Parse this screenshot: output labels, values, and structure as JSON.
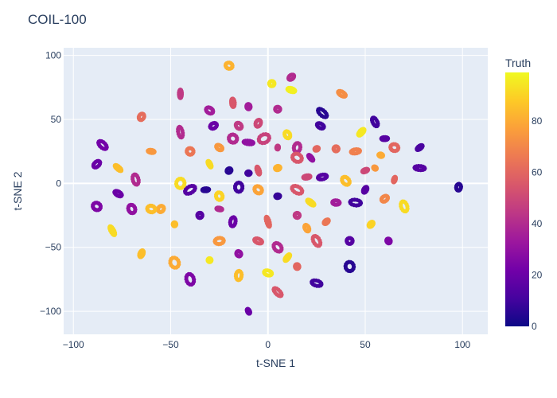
{
  "chart_data": {
    "type": "scatter",
    "title": "COIL-100",
    "xlabel": "t-SNE 1",
    "ylabel": "t-SNE 2",
    "xlim": [
      -105,
      113
    ],
    "ylim": [
      -118,
      106
    ],
    "xticks": [
      -100,
      -50,
      0,
      50,
      100
    ],
    "yticks": [
      -100,
      -50,
      0,
      50,
      100
    ],
    "xtick_labels": [
      "−100",
      "−50",
      "0",
      "50",
      "100"
    ],
    "ytick_labels": [
      "−100",
      "−50",
      "0",
      "50",
      "100"
    ],
    "grid": true,
    "plot_background": "#e5ecf6",
    "colorbar": {
      "title": "Truth",
      "range": [
        0,
        99
      ],
      "ticks": [
        0,
        20,
        40,
        60,
        80
      ],
      "colorscale": [
        "#0d0887",
        "#46039f",
        "#7201a8",
        "#9c179e",
        "#bd3786",
        "#d8576b",
        "#ed7953",
        "#fb9f3a",
        "#fdca26",
        "#f0f921"
      ]
    },
    "clusters": [
      {
        "x": -20,
        "y": 92,
        "label": 82
      },
      {
        "x": 2,
        "y": 78,
        "label": 95
      },
      {
        "x": 12,
        "y": 73,
        "label": 97
      },
      {
        "x": 12,
        "y": 83,
        "label": 40
      },
      {
        "x": -45,
        "y": 70,
        "label": 45
      },
      {
        "x": -65,
        "y": 52,
        "label": 62
      },
      {
        "x": -30,
        "y": 57,
        "label": 35
      },
      {
        "x": -18,
        "y": 63,
        "label": 55
      },
      {
        "x": -10,
        "y": 60,
        "label": 35
      },
      {
        "x": 5,
        "y": 58,
        "label": 40
      },
      {
        "x": 38,
        "y": 70,
        "label": 72
      },
      {
        "x": 28,
        "y": 55,
        "label": 5
      },
      {
        "x": 27,
        "y": 45,
        "label": 10
      },
      {
        "x": 55,
        "y": 48,
        "label": 10
      },
      {
        "x": 48,
        "y": 40,
        "label": 95
      },
      {
        "x": -85,
        "y": 30,
        "label": 22
      },
      {
        "x": -88,
        "y": 15,
        "label": 20
      },
      {
        "x": -77,
        "y": 12,
        "label": 85
      },
      {
        "x": -60,
        "y": 25,
        "label": 75
      },
      {
        "x": -40,
        "y": 25,
        "label": 65
      },
      {
        "x": -45,
        "y": 40,
        "label": 40
      },
      {
        "x": -28,
        "y": 45,
        "label": 20
      },
      {
        "x": -15,
        "y": 45,
        "label": 45
      },
      {
        "x": -5,
        "y": 47,
        "label": 50
      },
      {
        "x": 10,
        "y": 38,
        "label": 92
      },
      {
        "x": -2,
        "y": 35,
        "label": 48
      },
      {
        "x": 15,
        "y": 28,
        "label": 40
      },
      {
        "x": 25,
        "y": 27,
        "label": 60
      },
      {
        "x": 35,
        "y": 27,
        "label": 62
      },
      {
        "x": 45,
        "y": 25,
        "label": 68
      },
      {
        "x": 58,
        "y": 22,
        "label": 80
      },
      {
        "x": 60,
        "y": 35,
        "label": 15
      },
      {
        "x": 65,
        "y": 28,
        "label": 60
      },
      {
        "x": 78,
        "y": 28,
        "label": 12
      },
      {
        "x": 78,
        "y": 12,
        "label": 15
      },
      {
        "x": -25,
        "y": 28,
        "label": 75
      },
      {
        "x": -18,
        "y": 35,
        "label": 40
      },
      {
        "x": -10,
        "y": 32,
        "label": 30
      },
      {
        "x": 5,
        "y": 28,
        "label": 45
      },
      {
        "x": 15,
        "y": 20,
        "label": 55
      },
      {
        "x": 22,
        "y": 20,
        "label": 30
      },
      {
        "x": -30,
        "y": 15,
        "label": 92
      },
      {
        "x": -20,
        "y": 10,
        "label": 5
      },
      {
        "x": -10,
        "y": 8,
        "label": 10
      },
      {
        "x": -5,
        "y": 10,
        "label": 55
      },
      {
        "x": 5,
        "y": 12,
        "label": 82
      },
      {
        "x": 20,
        "y": 5,
        "label": 50
      },
      {
        "x": 28,
        "y": 5,
        "label": 15
      },
      {
        "x": 40,
        "y": 2,
        "label": 85
      },
      {
        "x": 50,
        "y": 10,
        "label": 50
      },
      {
        "x": 55,
        "y": 12,
        "label": 75
      },
      {
        "x": 65,
        "y": 3,
        "label": 60
      },
      {
        "x": 98,
        "y": -3,
        "label": 5
      },
      {
        "x": -68,
        "y": 3,
        "label": 40
      },
      {
        "x": -77,
        "y": -8,
        "label": 20
      },
      {
        "x": -88,
        "y": -18,
        "label": 25
      },
      {
        "x": -70,
        "y": -20,
        "label": 30
      },
      {
        "x": -55,
        "y": -20,
        "label": 80
      },
      {
        "x": -45,
        "y": 0,
        "label": 92
      },
      {
        "x": -40,
        "y": -5,
        "label": 15
      },
      {
        "x": -32,
        "y": -5,
        "label": 5
      },
      {
        "x": -25,
        "y": -10,
        "label": 90
      },
      {
        "x": -15,
        "y": -3,
        "label": 10
      },
      {
        "x": -5,
        "y": -5,
        "label": 78
      },
      {
        "x": 5,
        "y": -10,
        "label": 8
      },
      {
        "x": 15,
        "y": -5,
        "label": 55
      },
      {
        "x": 22,
        "y": -15,
        "label": 92
      },
      {
        "x": 35,
        "y": -15,
        "label": 35
      },
      {
        "x": 45,
        "y": -15,
        "label": 10
      },
      {
        "x": 50,
        "y": -5,
        "label": 15
      },
      {
        "x": 60,
        "y": -12,
        "label": 70
      },
      {
        "x": 70,
        "y": -18,
        "label": 92
      },
      {
        "x": -80,
        "y": -37,
        "label": 92
      },
      {
        "x": -60,
        "y": -20,
        "label": 85
      },
      {
        "x": -48,
        "y": -32,
        "label": 85
      },
      {
        "x": -35,
        "y": -25,
        "label": 15
      },
      {
        "x": -25,
        "y": -20,
        "label": 40
      },
      {
        "x": -18,
        "y": -30,
        "label": 20
      },
      {
        "x": 0,
        "y": -30,
        "label": 60
      },
      {
        "x": 15,
        "y": -25,
        "label": 45
      },
      {
        "x": 20,
        "y": -35,
        "label": 78
      },
      {
        "x": 30,
        "y": -30,
        "label": 65
      },
      {
        "x": 53,
        "y": -32,
        "label": 90
      },
      {
        "x": -65,
        "y": -55,
        "label": 85
      },
      {
        "x": -48,
        "y": -62,
        "label": 80
      },
      {
        "x": -40,
        "y": -75,
        "label": 25
      },
      {
        "x": -30,
        "y": -60,
        "label": 95
      },
      {
        "x": -25,
        "y": -45,
        "label": 75
      },
      {
        "x": -15,
        "y": -55,
        "label": 30
      },
      {
        "x": -5,
        "y": -45,
        "label": 55
      },
      {
        "x": 5,
        "y": -50,
        "label": 40
      },
      {
        "x": 10,
        "y": -58,
        "label": 92
      },
      {
        "x": 25,
        "y": -45,
        "label": 55
      },
      {
        "x": 42,
        "y": -45,
        "label": 15
      },
      {
        "x": 62,
        "y": -45,
        "label": 25
      },
      {
        "x": -15,
        "y": -72,
        "label": 85
      },
      {
        "x": 0,
        "y": -70,
        "label": 95
      },
      {
        "x": 15,
        "y": -65,
        "label": 60
      },
      {
        "x": 42,
        "y": -65,
        "label": 5
      },
      {
        "x": 25,
        "y": -78,
        "label": 10
      },
      {
        "x": 5,
        "y": -85,
        "label": 55
      },
      {
        "x": -10,
        "y": -100,
        "label": 20
      }
    ]
  }
}
